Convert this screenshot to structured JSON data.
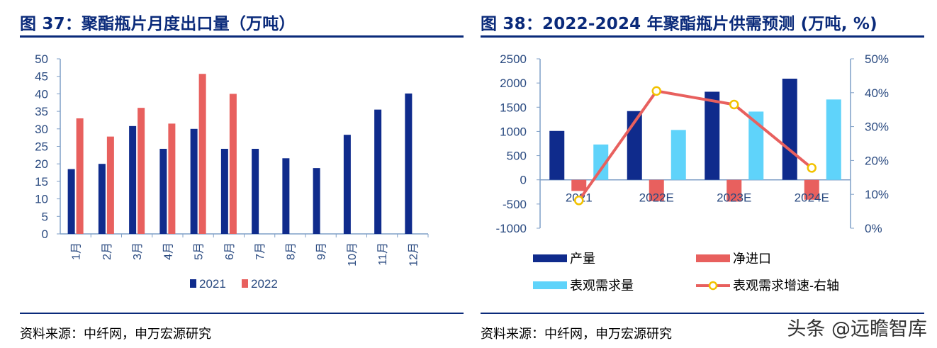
{
  "left": {
    "title": "图 37：聚酯瓶片月度出口量（万吨）",
    "source": "资料来源：中纤网，申万宏源研究"
  },
  "right": {
    "title": "图 38：2022-2024 年聚酯瓶片供需预测 (万吨, %)",
    "source": "资料来源：中纤网，申万宏源研究"
  },
  "watermark": "头条 @远瞻智库",
  "colors": {
    "navy": "#0f2b8c",
    "red": "#e8605e",
    "cyan": "#5fd3fa",
    "line": "#e8605e",
    "marker_fill": "#ffffff",
    "marker_stroke": "#f2c200",
    "axis": "#7f9fc7",
    "text": "#2a4a80",
    "rule": "#0a2a7a"
  },
  "chart_data": [
    {
      "type": "bar",
      "categories": [
        "1月",
        "2月",
        "3月",
        "4月",
        "5月",
        "6月",
        "7月",
        "8月",
        "9月",
        "10月",
        "11月",
        "12月"
      ],
      "series": [
        {
          "name": "2021",
          "values": [
            18.5,
            20,
            30.8,
            24.3,
            30,
            24.3,
            24.3,
            21.6,
            18.8,
            28.3,
            35.5,
            40.1
          ]
        },
        {
          "name": "2022",
          "values": [
            33,
            27.8,
            36,
            31.5,
            45.7,
            40,
            null,
            null,
            null,
            null,
            null,
            null
          ]
        }
      ],
      "ylim": [
        0,
        50
      ],
      "yticks": [
        0,
        5,
        10,
        15,
        20,
        25,
        30,
        35,
        40,
        45,
        50
      ],
      "legend": "bottom"
    },
    {
      "type": "bar",
      "categories": [
        "2021",
        "2022E",
        "2023E",
        "2024E"
      ],
      "series": [
        {
          "name": "产量",
          "values": [
            1010,
            1420,
            1820,
            2090
          ]
        },
        {
          "name": "净进口",
          "values": [
            -230,
            -440,
            -450,
            -410
          ]
        },
        {
          "name": "表观需求量",
          "values": [
            730,
            1030,
            1410,
            1660
          ]
        },
        {
          "name": "表观需求增速-右轴",
          "type": "line",
          "axis": "right",
          "values": [
            8.2,
            40.5,
            36.5,
            17.8
          ]
        }
      ],
      "ylim": [
        -1000,
        2500
      ],
      "yticks": [
        -1000,
        -500,
        0,
        500,
        1000,
        1500,
        2000,
        2500
      ],
      "y2lim": [
        0,
        50
      ],
      "y2ticks": [
        "0%",
        "10%",
        "20%",
        "30%",
        "40%",
        "50%"
      ],
      "legend": "bottom"
    }
  ]
}
